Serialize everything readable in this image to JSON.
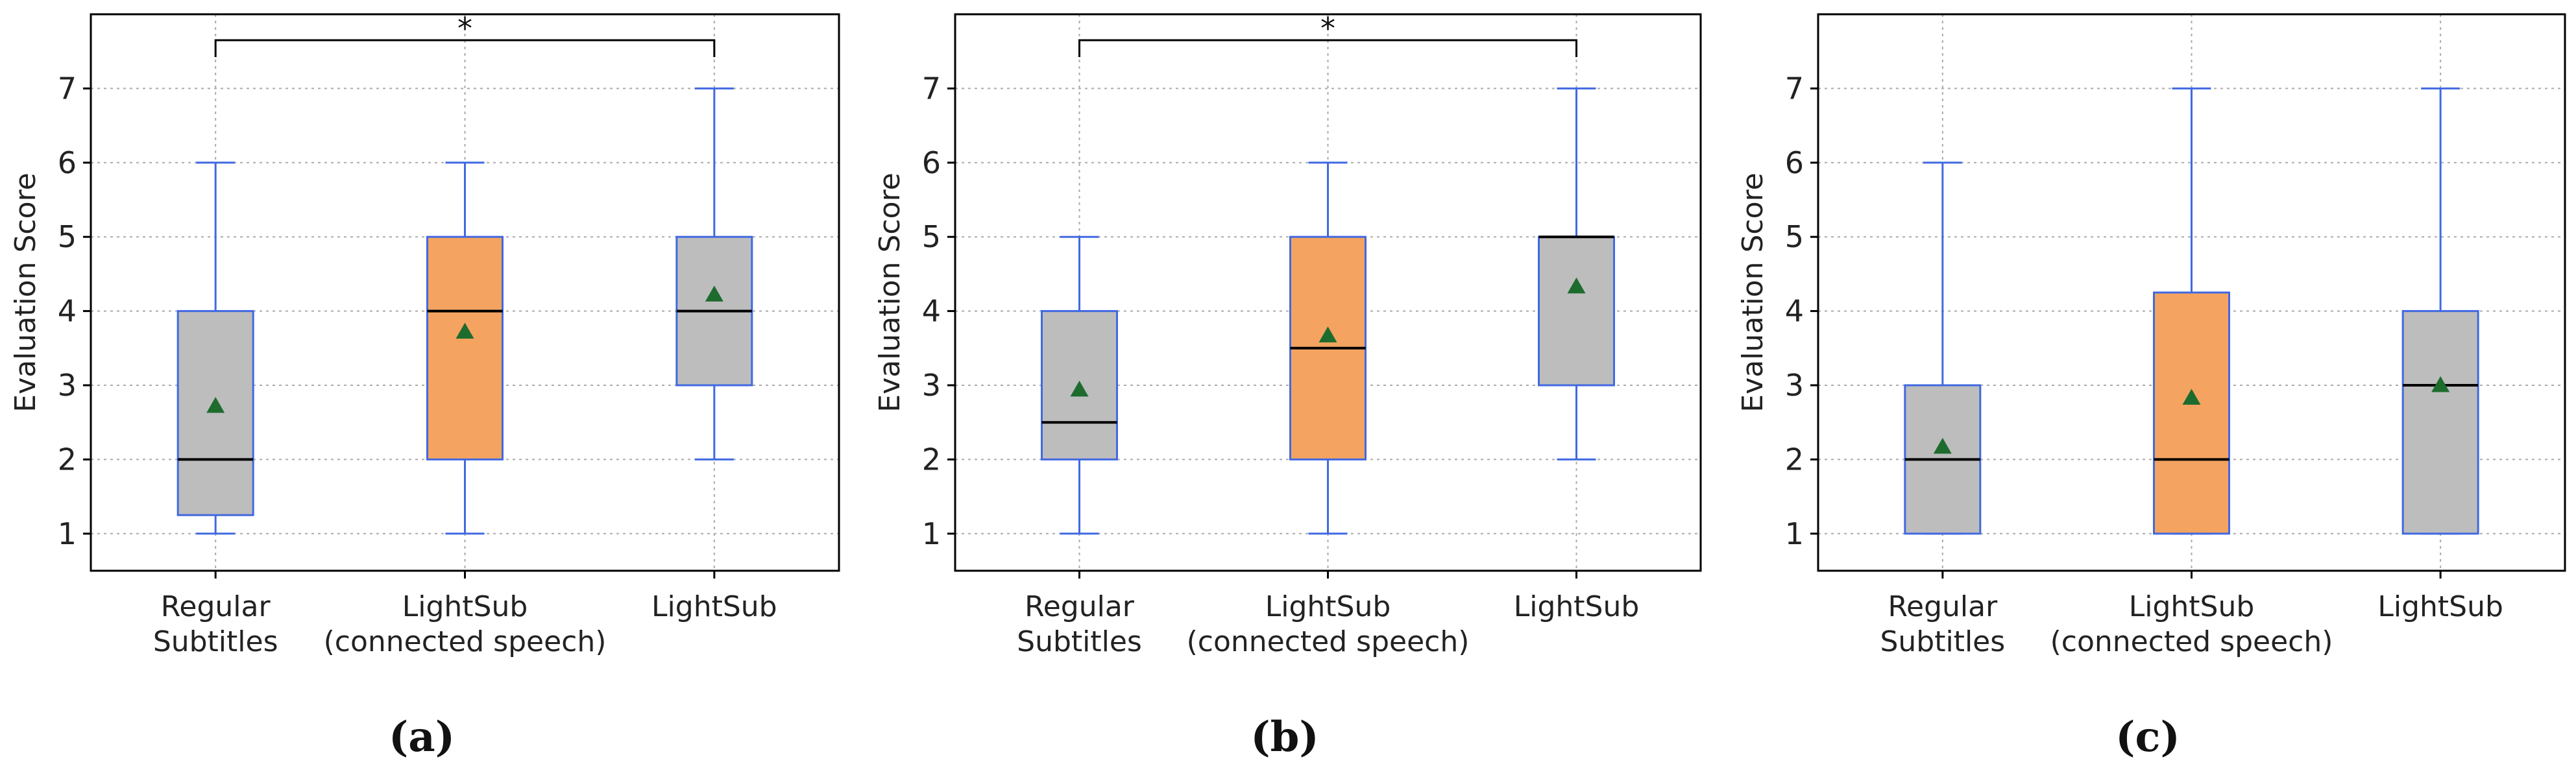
{
  "colors": {
    "box_gray": "#BDBDBD",
    "box_orange": "#F4A460",
    "box_edge": "#4169E1",
    "median": "#000000",
    "mean_marker": "#1E6B2E",
    "grid": "#AAAAAA",
    "axis": "#000000"
  },
  "chart_data": [
    {
      "type": "box",
      "panel_label": "(a)",
      "ylabel": "Evaluation Score",
      "ylim": [
        0.5,
        8.0
      ],
      "yticks": [
        "1",
        "2",
        "3",
        "4",
        "5",
        "6",
        "7"
      ],
      "grid": true,
      "categories": [
        {
          "lines": [
            "Regular",
            "Subtitles"
          ],
          "color": "gray",
          "whislo": 1,
          "q1": 1.25,
          "med": 2,
          "q3": 4,
          "whishi": 6,
          "mean": 2.72
        },
        {
          "lines": [
            "LightSub",
            "(connected speech)"
          ],
          "color": "orange",
          "whislo": 1,
          "q1": 2,
          "med": 4,
          "q3": 5,
          "whishi": 6,
          "mean": 3.72
        },
        {
          "lines": [
            "LightSub"
          ],
          "color": "gray",
          "whislo": 2,
          "q1": 3,
          "med": 4,
          "q3": 5,
          "whishi": 7,
          "mean": 4.22
        }
      ],
      "significance": [
        {
          "from": 0,
          "to": 2,
          "label": "*"
        }
      ]
    },
    {
      "type": "box",
      "panel_label": "(b)",
      "ylabel": "Evaluation Score",
      "ylim": [
        0.5,
        8.0
      ],
      "yticks": [
        "1",
        "2",
        "3",
        "4",
        "5",
        "6",
        "7"
      ],
      "grid": true,
      "categories": [
        {
          "lines": [
            "Regular",
            "Subtitles"
          ],
          "color": "gray",
          "whislo": 1,
          "q1": 2,
          "med": 2.5,
          "q3": 4,
          "whishi": 5,
          "mean": 2.94
        },
        {
          "lines": [
            "LightSub",
            "(connected speech)"
          ],
          "color": "orange",
          "whislo": 1,
          "q1": 2,
          "med": 3.5,
          "q3": 5,
          "whishi": 6,
          "mean": 3.67
        },
        {
          "lines": [
            "LightSub"
          ],
          "color": "gray",
          "whislo": 2,
          "q1": 3,
          "med": 5,
          "q3": 5,
          "whishi": 7,
          "mean": 4.33
        }
      ],
      "significance": [
        {
          "from": 0,
          "to": 2,
          "label": "*"
        }
      ]
    },
    {
      "type": "box",
      "panel_label": "(c)",
      "ylabel": "Evaluation Score",
      "ylim": [
        0.5,
        8.0
      ],
      "yticks": [
        "1",
        "2",
        "3",
        "4",
        "5",
        "6",
        "7"
      ],
      "grid": true,
      "categories": [
        {
          "lines": [
            "Regular",
            "Subtitles"
          ],
          "color": "gray",
          "whislo": 1,
          "q1": 1,
          "med": 2,
          "q3": 3,
          "whishi": 6,
          "mean": 2.17
        },
        {
          "lines": [
            "LightSub",
            "(connected speech)"
          ],
          "color": "orange",
          "whislo": 1,
          "q1": 1,
          "med": 2,
          "q3": 4.25,
          "whishi": 7,
          "mean": 2.83
        },
        {
          "lines": [
            "LightSub"
          ],
          "color": "gray",
          "whislo": 1,
          "q1": 1,
          "med": 3,
          "q3": 4,
          "whishi": 7,
          "mean": 3.0
        }
      ],
      "significance": []
    }
  ]
}
